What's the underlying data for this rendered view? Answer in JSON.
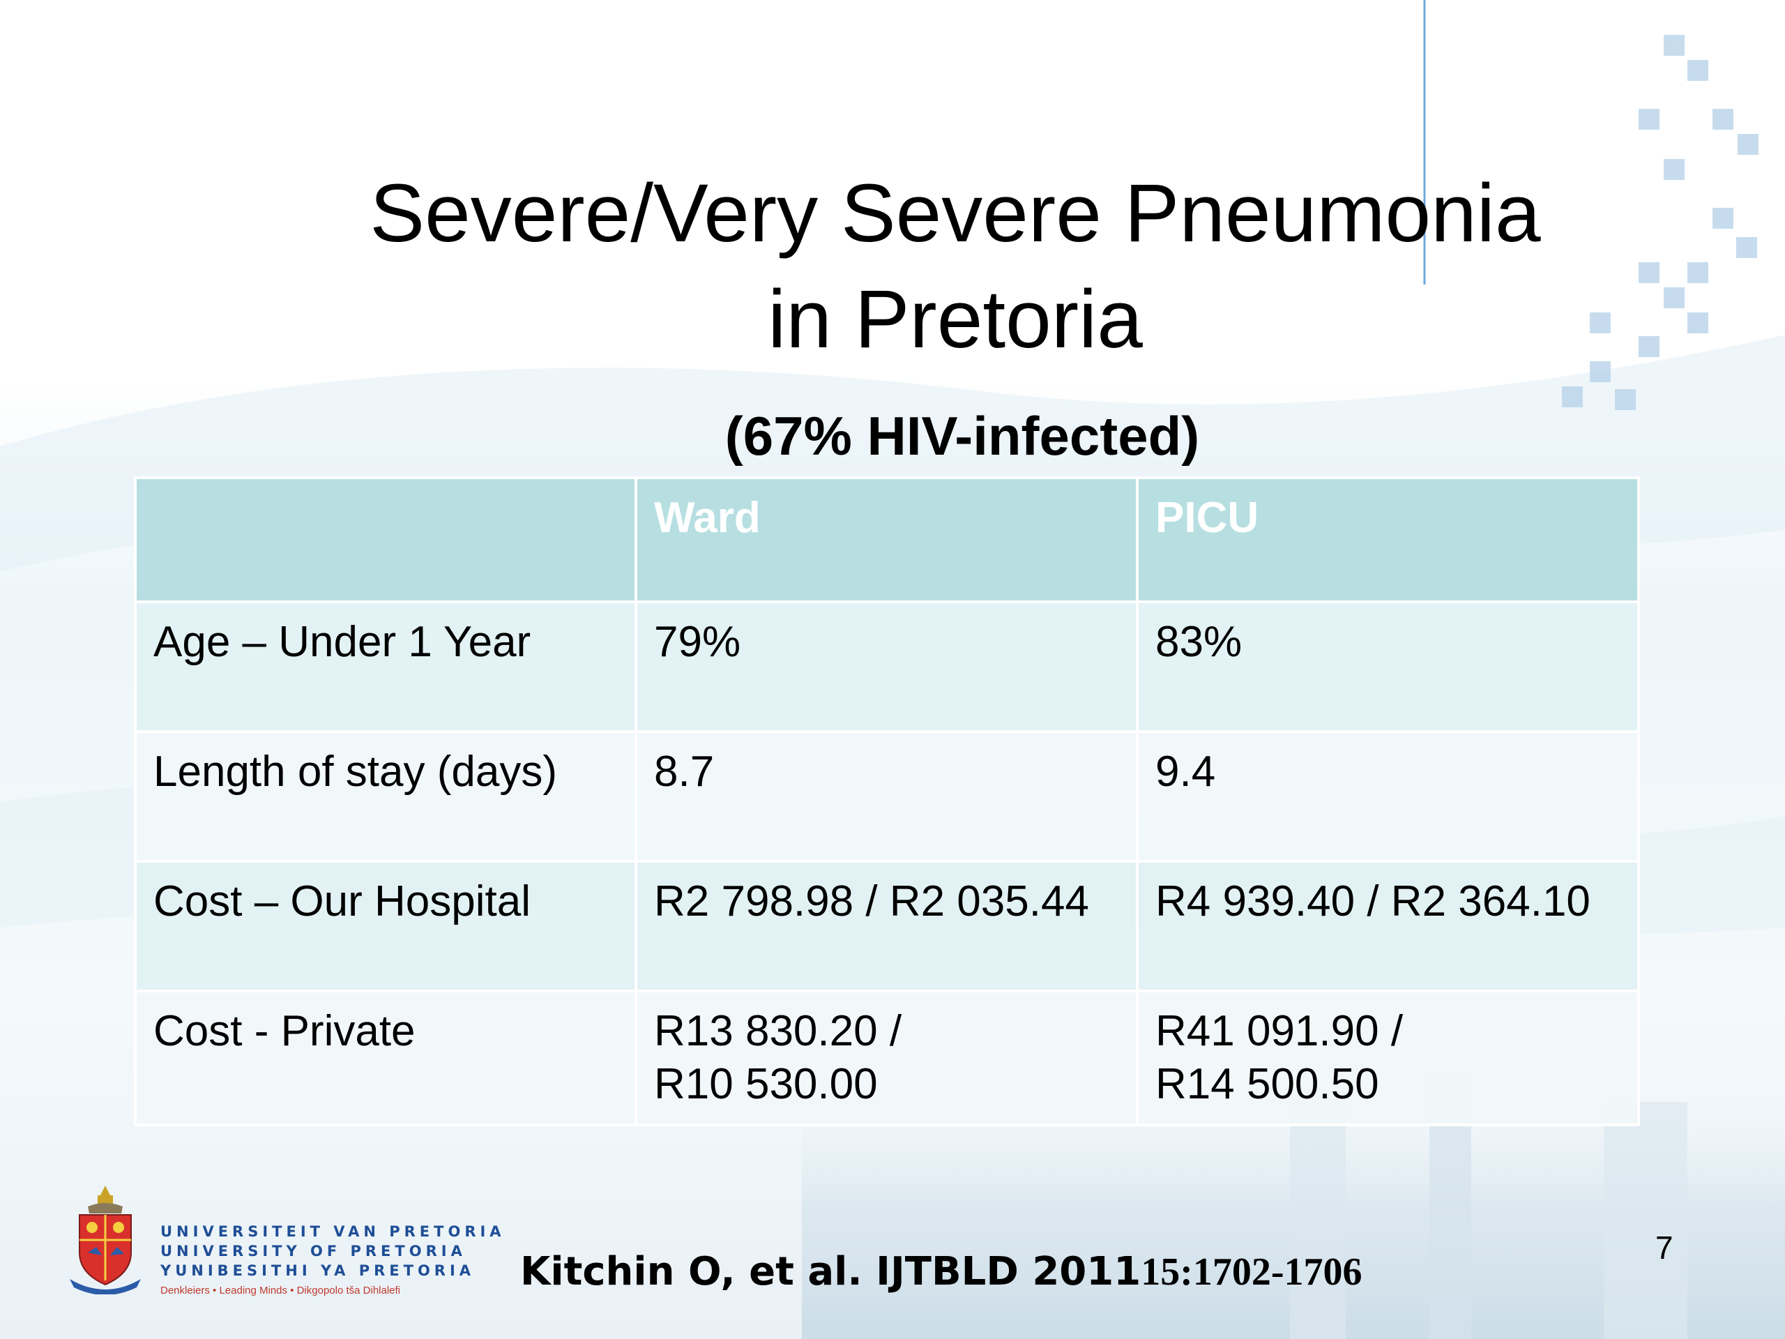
{
  "slide": {
    "title_lines": [
      "Severe/Very Severe Pneumonia",
      "in Pretoria"
    ],
    "subtitle": "(67% HIV-infected)",
    "table": {
      "header": [
        "",
        "Ward",
        "PICU"
      ],
      "rows": [
        {
          "label": "Age – Under 1 Year",
          "ward": [
            "79%"
          ],
          "picu": [
            "83%"
          ]
        },
        {
          "label": "Length of stay (days)",
          "ward": [
            "8.7"
          ],
          "picu": [
            "9.4"
          ]
        },
        {
          "label": "Cost – Our Hospital",
          "ward": [
            "R2 798.98 / R2 035.44"
          ],
          "picu": [
            "R4 939.40 / R2 364.10"
          ]
        },
        {
          "label": "Cost - Private",
          "ward": [
            "R13 830.20 /",
            "R10 530.00"
          ],
          "picu": [
            "R41 091.90 /",
            "R14 500.50"
          ]
        }
      ]
    },
    "logo": {
      "lines": [
        "UNIVERSITEIT VAN PRETORIA",
        "UNIVERSITY OF PRETORIA",
        "YUNIBESITHI YA PRETORIA"
      ],
      "motto": "Denkleiers • Leading Minds • Dikgopolo tša Dihlalefi"
    },
    "citation": {
      "authors_journal_year": "Kitchin O, et al. IJTBLD 2011",
      "volume_pages": "15:1702-1706"
    },
    "page_number": "7",
    "colors": {
      "header_fill": "#b7dfe1",
      "row_fill_dark": "#e2f1f3",
      "row_fill_light": "#f1f8f9",
      "logo_text": "#1f4e96",
      "accent_line": "#6fa8dc"
    }
  }
}
